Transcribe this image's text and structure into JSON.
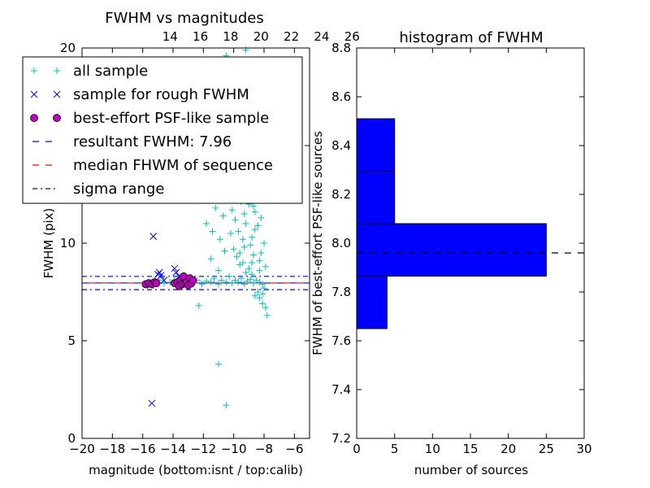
{
  "chart_data": [
    {
      "type": "scatter",
      "title": "FWHM vs magnitudes",
      "xlabel": "magnitude (bottom:isnt / top:calib)",
      "ylabel": "FWHM (pix)",
      "xlim": [
        -20,
        -5
      ],
      "ylim": [
        0,
        20
      ],
      "x_ticks": [
        -20,
        -18,
        -16,
        -14,
        -12,
        -10,
        -8,
        -6
      ],
      "x_tick_labels": [
        "−20",
        "−18",
        "−16",
        "−14",
        "−12",
        "−10",
        "−8",
        "−6"
      ],
      "y_ticks": [
        0,
        5,
        10,
        15,
        20
      ],
      "y_tick_labels": [
        "0",
        "5",
        "10",
        "15",
        "20"
      ],
      "top_x_ticks": [
        14,
        16,
        18,
        20,
        22,
        24,
        26
      ],
      "top_x_tick_labels": [
        "14",
        "16",
        "18",
        "20",
        "22",
        "24",
        "26"
      ],
      "top_axis_offset": -28.2,
      "legend_position": "upper-left",
      "legend": [
        {
          "label": "all sample",
          "marker": "plus",
          "color": "#00bfbf"
        },
        {
          "label": "sample for rough FWHM",
          "marker": "x",
          "color": "#0000ff"
        },
        {
          "label": "best-effort PSF-like sample",
          "marker": "circle",
          "color": "#bf00bf"
        },
        {
          "label": "resultant FWHM: 7.96",
          "marker": "dashed",
          "color": "#0000ff"
        },
        {
          "label": "median FHWM of sequence",
          "marker": "dashed",
          "color": "#ff0000"
        },
        {
          "label": "sigma range",
          "marker": "dashdot",
          "color": "#0000ff"
        }
      ],
      "series": [
        {
          "name": "all sample",
          "marker": "plus",
          "color": "#00bfbf",
          "points": [
            [
              -15.6,
              7.9
            ],
            [
              -15.2,
              8.0
            ],
            [
              -14.9,
              8.1
            ],
            [
              -14.6,
              7.95
            ],
            [
              -14.2,
              8.0
            ],
            [
              -13.9,
              8.1
            ],
            [
              -13.6,
              7.8
            ],
            [
              -13.3,
              8.05
            ],
            [
              -13.0,
              7.95
            ],
            [
              -12.7,
              8.0
            ],
            [
              -12.4,
              8.1
            ],
            [
              -12.1,
              7.9
            ],
            [
              -11.8,
              8.05
            ],
            [
              -11.5,
              8.0
            ],
            [
              -11.3,
              8.2
            ],
            [
              -11.0,
              7.9
            ],
            [
              -10.8,
              8.1
            ],
            [
              -10.5,
              8.0
            ],
            [
              -10.3,
              8.3
            ],
            [
              -10.1,
              7.95
            ],
            [
              -9.9,
              8.1
            ],
            [
              -9.7,
              8.0
            ],
            [
              -9.5,
              8.2
            ],
            [
              -9.3,
              7.9
            ],
            [
              -9.1,
              8.05
            ],
            [
              -8.9,
              8.15
            ],
            [
              -8.7,
              7.95
            ],
            [
              -8.5,
              8.1
            ],
            [
              -8.3,
              8.0
            ],
            [
              -8.1,
              7.9
            ],
            [
              -12.3,
              6.8
            ],
            [
              -11.0,
              8.6
            ],
            [
              -11.5,
              9.2
            ],
            [
              -10.6,
              9.6
            ],
            [
              -10.9,
              10.2
            ],
            [
              -11.6,
              12.8
            ],
            [
              -11.2,
              11.8
            ],
            [
              -10.4,
              12.3
            ],
            [
              -10.1,
              13.0
            ],
            [
              -9.9,
              11.2
            ],
            [
              -9.7,
              10.6
            ],
            [
              -9.5,
              12.1
            ],
            [
              -9.3,
              9.8
            ],
            [
              -9.2,
              11.0
            ],
            [
              -9.0,
              13.4
            ],
            [
              -8.9,
              12.6
            ],
            [
              -8.8,
              10.3
            ],
            [
              -8.7,
              9.4
            ],
            [
              -8.6,
              11.6
            ],
            [
              -8.5,
              12.9
            ],
            [
              -8.4,
              10.9
            ],
            [
              -8.3,
              9.1
            ],
            [
              -8.2,
              11.3
            ],
            [
              -8.1,
              12.2
            ],
            [
              -8.0,
              10.0
            ],
            [
              -7.9,
              8.8
            ],
            [
              -7.9,
              6.7
            ],
            [
              -7.8,
              6.3
            ],
            [
              -8.1,
              6.9
            ],
            [
              -8.3,
              7.2
            ],
            [
              -8.4,
              7.5
            ],
            [
              -8.6,
              7.3
            ],
            [
              -8.8,
              8.4
            ],
            [
              -9.0,
              8.7
            ],
            [
              -9.2,
              8.5
            ],
            [
              -9.4,
              9.0
            ],
            [
              -9.6,
              8.9
            ],
            [
              -9.8,
              9.3
            ],
            [
              -10.0,
              9.7
            ],
            [
              -10.2,
              10.5
            ],
            [
              -8.5,
              13.8
            ],
            [
              -8.2,
              14.0
            ],
            [
              -8.8,
              13.6
            ],
            [
              -9.1,
              14.0
            ],
            [
              -10.4,
              14.2
            ],
            [
              -9.9,
              14.1
            ],
            [
              -8.7,
              11.9
            ],
            [
              -8.9,
              9.9
            ],
            [
              -9.3,
              11.5
            ],
            [
              -8.4,
              12.4
            ],
            [
              -10.5,
              19.6
            ],
            [
              -9.2,
              19.9
            ],
            [
              -8.6,
              19.4
            ],
            [
              -11.0,
              3.8
            ],
            [
              -10.5,
              1.7
            ],
            [
              -8.1,
              7.4
            ],
            [
              -8.0,
              7.7
            ],
            [
              -8.3,
              8.6
            ],
            [
              -8.6,
              10.7
            ],
            [
              -9.4,
              10.2
            ],
            [
              -10.1,
              11.7
            ],
            [
              -9.7,
              12.7
            ],
            [
              -9.0,
              12.0
            ],
            [
              -11.8,
              11.0
            ],
            [
              -12.0,
              13.6
            ],
            [
              -8.2,
              9.5
            ],
            [
              -8.8,
              9.0
            ],
            [
              -9.6,
              9.5
            ],
            [
              -10.7,
              11.4
            ],
            [
              -11.4,
              10.6
            ]
          ]
        },
        {
          "name": "sample for rough FWHM",
          "marker": "x",
          "color": "#0000ff",
          "points": [
            [
              -15.3,
              10.35
            ],
            [
              -15.4,
              1.8
            ],
            [
              -15.0,
              8.4
            ],
            [
              -14.9,
              8.5
            ],
            [
              -14.8,
              8.35
            ],
            [
              -13.9,
              8.7
            ],
            [
              -13.8,
              8.5
            ],
            [
              -13.6,
              8.3
            ],
            [
              -13.4,
              8.2
            ],
            [
              -15.7,
              7.9
            ],
            [
              -15.5,
              7.85
            ],
            [
              -15.2,
              8.0
            ],
            [
              -14.6,
              8.1
            ],
            [
              -13.1,
              8.05
            ],
            [
              -12.9,
              7.9
            ]
          ]
        },
        {
          "name": "best-effort PSF-like sample",
          "marker": "circle",
          "color": "#bf00bf",
          "points": [
            [
              -15.8,
              7.9
            ],
            [
              -15.6,
              7.95
            ],
            [
              -15.4,
              7.9
            ],
            [
              -15.2,
              8.0
            ],
            [
              -15.1,
              7.95
            ],
            [
              -13.9,
              7.95
            ],
            [
              -13.7,
              8.0
            ],
            [
              -13.6,
              7.8
            ],
            [
              -13.5,
              8.1
            ],
            [
              -13.4,
              7.9
            ],
            [
              -13.3,
              8.3
            ],
            [
              -13.2,
              7.95
            ],
            [
              -13.1,
              8.0
            ],
            [
              -13.0,
              7.85
            ],
            [
              -12.9,
              8.2
            ],
            [
              -12.8,
              7.95
            ],
            [
              -12.7,
              8.1
            ]
          ]
        }
      ],
      "hlines": [
        {
          "name": "resultant FWHM: 7.96",
          "y": 7.96,
          "style": "dashed",
          "color": "#0000ff"
        },
        {
          "name": "median FHWM of sequence",
          "y": 7.96,
          "style": "dashed",
          "color": "#ff0000"
        },
        {
          "name": "sigma range",
          "y": 8.3,
          "style": "dashdot",
          "color": "#0000ff"
        },
        {
          "name": "sigma range",
          "y": 7.62,
          "style": "dashdot",
          "color": "#0000ff"
        }
      ],
      "grid": false
    },
    {
      "type": "bar",
      "orientation": "horizontal",
      "title": "histogram of FWHM",
      "xlabel": "number of sources",
      "ylabel": "FWHM of best-effort PSF-like sources",
      "xlim": [
        0,
        30
      ],
      "ylim": [
        7.2,
        8.8
      ],
      "x_ticks": [
        0,
        5,
        10,
        15,
        20,
        25,
        30
      ],
      "x_tick_labels": [
        "0",
        "5",
        "10",
        "15",
        "20",
        "25",
        "30"
      ],
      "y_ticks": [
        7.2,
        7.4,
        7.6,
        7.8,
        8.0,
        8.2,
        8.4,
        8.6,
        8.8
      ],
      "y_tick_labels": [
        "7.2",
        "7.4",
        "7.6",
        "7.8",
        "8.0",
        "8.2",
        "8.4",
        "8.6",
        "8.8"
      ],
      "bar_color": "#0000ff",
      "bins": [
        {
          "low": 7.65,
          "high": 7.865,
          "count": 4
        },
        {
          "low": 7.865,
          "high": 8.08,
          "count": 25
        },
        {
          "low": 8.08,
          "high": 8.295,
          "count": 5
        },
        {
          "low": 8.295,
          "high": 8.51,
          "count": 5
        }
      ],
      "hline": {
        "y": 7.96,
        "style": "dashed",
        "color": "#000000"
      },
      "grid": false
    }
  ]
}
